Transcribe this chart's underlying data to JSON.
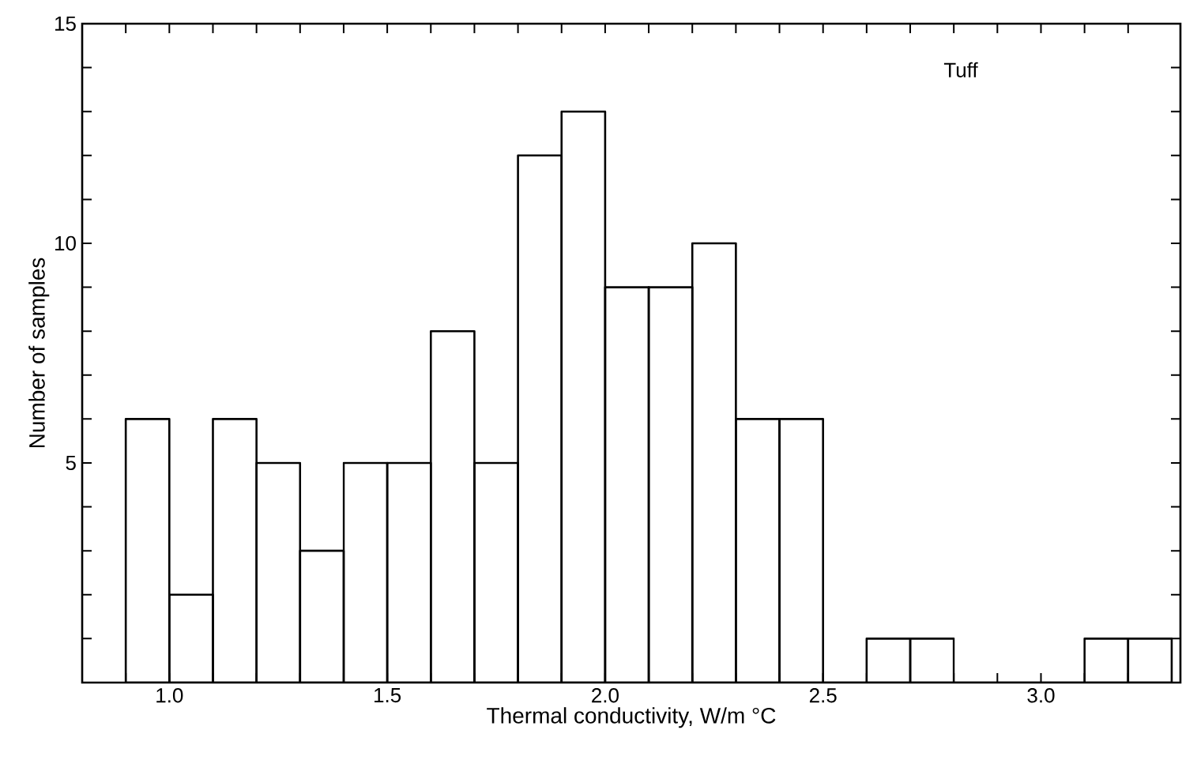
{
  "chart_data": {
    "type": "histogram",
    "xlabel": "Thermal conductivity, W/m °C",
    "ylabel": "Number of samples",
    "annotations": [
      "Tuff"
    ],
    "bins": [
      0.9,
      1.0,
      1.1,
      1.2,
      1.3,
      1.4,
      1.5,
      1.6,
      1.7,
      1.8,
      1.9,
      2.0,
      2.1,
      2.2,
      2.3,
      2.4,
      2.5,
      2.6,
      2.7,
      2.8,
      2.9,
      3.0,
      3.1,
      3.2,
      3.3
    ],
    "values": [
      6,
      2,
      6,
      5,
      3,
      5,
      5,
      8,
      5,
      12,
      13,
      9,
      9,
      10,
      6,
      6,
      0,
      1,
      1,
      0,
      0,
      0,
      1,
      1
    ],
    "color": "#000000",
    "xlim": [
      0.8,
      3.32
    ],
    "ylim": [
      0,
      15
    ],
    "xticks": [
      {
        "value": 0.9,
        "label": null
      },
      {
        "value": 1.0,
        "label": "1.0"
      },
      {
        "value": 1.1,
        "label": null
      },
      {
        "value": 1.2,
        "label": null
      },
      {
        "value": 1.3,
        "label": null
      },
      {
        "value": 1.4,
        "label": null
      },
      {
        "value": 1.5,
        "label": "1.5"
      },
      {
        "value": 1.6,
        "label": null
      },
      {
        "value": 1.7,
        "label": null
      },
      {
        "value": 1.8,
        "label": null
      },
      {
        "value": 1.9,
        "label": null
      },
      {
        "value": 2.0,
        "label": "2.0"
      },
      {
        "value": 2.1,
        "label": null
      },
      {
        "value": 2.2,
        "label": null
      },
      {
        "value": 2.3,
        "label": null
      },
      {
        "value": 2.4,
        "label": null
      },
      {
        "value": 2.5,
        "label": "2.5"
      },
      {
        "value": 2.6,
        "label": null
      },
      {
        "value": 2.7,
        "label": null
      },
      {
        "value": 2.8,
        "label": null
      },
      {
        "value": 2.9,
        "label": null
      },
      {
        "value": 3.0,
        "label": "3.0"
      },
      {
        "value": 3.1,
        "label": null
      },
      {
        "value": 3.2,
        "label": null
      }
    ],
    "yticks": [
      {
        "value": 1,
        "label": null
      },
      {
        "value": 2,
        "label": null
      },
      {
        "value": 3,
        "label": null
      },
      {
        "value": 4,
        "label": null
      },
      5,
      {
        "value": 6,
        "label": null
      },
      {
        "value": 7,
        "label": null
      },
      {
        "value": 8,
        "label": null
      },
      {
        "value": 9,
        "label": null
      },
      10,
      {
        "value": 11,
        "label": null
      },
      {
        "value": 12,
        "label": null
      },
      {
        "value": 13,
        "label": null
      },
      {
        "value": 14,
        "label": null
      },
      15
    ],
    "grid": false
  }
}
